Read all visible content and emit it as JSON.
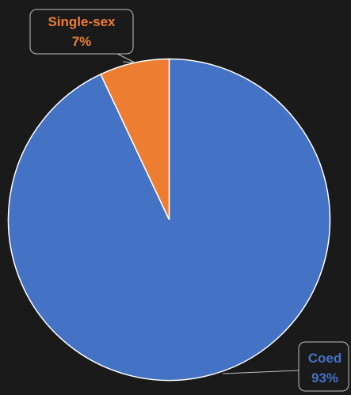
{
  "chart_data": {
    "type": "pie",
    "title": "",
    "categories": [
      "Coed",
      "Single-sex"
    ],
    "values": [
      93,
      7
    ],
    "value_labels": [
      "93%",
      "7%"
    ],
    "colors": [
      "#4472c4",
      "#ed7d31"
    ],
    "start_angle_deg": 0,
    "direction": "counterclockwise",
    "legend": "none",
    "data_labels": "callout"
  }
}
